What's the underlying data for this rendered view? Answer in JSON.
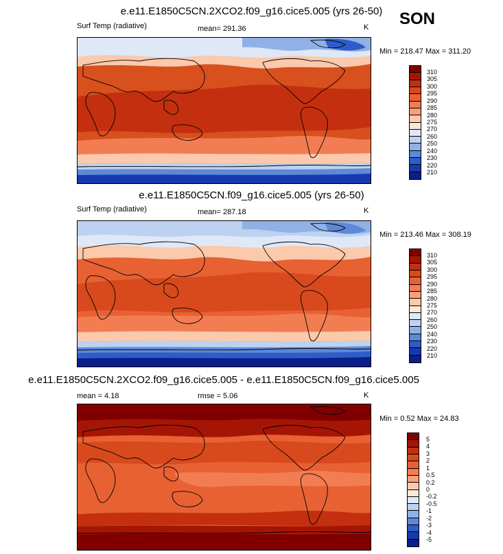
{
  "season": "SON",
  "panels": [
    {
      "title": "e.e11.E1850C5CN.2XCO2.f09_g16.cice5.005 (yrs 26-50)",
      "left_label": "Surf Temp (radiative)",
      "center_label": "mean= 291.36",
      "units": "K",
      "minmax": "Min = 218.47 Max = 311.20",
      "colorbar_labels": [
        "310",
        "305",
        "300",
        "295",
        "290",
        "285",
        "280",
        "275",
        "270",
        "260",
        "250",
        "240",
        "230",
        "220",
        "210"
      ],
      "colorbar_colors": [
        "#800000",
        "#a51505",
        "#c4300f",
        "#d84a1d",
        "#e86133",
        "#f27d52",
        "#f8a07a",
        "#fbc9ab",
        "#fde8d7",
        "#dfe8f7",
        "#bcd2f0",
        "#8fb1e6",
        "#5e88d8",
        "#2f5dc7",
        "#1838b0",
        "#0a1f8a"
      ]
    },
    {
      "title": "e.e11.E1850C5CN.f09_g16.cice5.005 (yrs 26-50)",
      "left_label": "Surf Temp (radiative)",
      "center_label": "mean= 287.18",
      "units": "K",
      "minmax": "Min = 213.46 Max = 308.19",
      "colorbar_labels": [
        "310",
        "305",
        "300",
        "295",
        "290",
        "285",
        "280",
        "275",
        "270",
        "260",
        "250",
        "240",
        "230",
        "220",
        "210"
      ],
      "colorbar_colors": [
        "#800000",
        "#a51505",
        "#c4300f",
        "#d84a1d",
        "#e86133",
        "#f27d52",
        "#f8a07a",
        "#fbc9ab",
        "#fde8d7",
        "#dfe8f7",
        "#bcd2f0",
        "#8fb1e6",
        "#5e88d8",
        "#2f5dc7",
        "#1838b0",
        "#0a1f8a"
      ]
    },
    {
      "title": "e.e11.E1850C5CN.2XCO2.f09_g16.cice5.005 - e.e11.E1850C5CN.f09_g16.cice5.005",
      "left_label": "mean =  4.18",
      "center_label": "rmse =  5.06",
      "units": "K",
      "minmax": "Min =  0.52 Max =  24.83",
      "colorbar_labels": [
        "5",
        "4",
        "3",
        "2",
        "1",
        "0.5",
        "0.2",
        "0",
        "-0.2",
        "-0.5",
        "-1",
        "-2",
        "-3",
        "-4",
        "-5"
      ],
      "colorbar_colors": [
        "#800000",
        "#a51505",
        "#c4300f",
        "#d84a1d",
        "#e86133",
        "#f27d52",
        "#f8a07a",
        "#fbc9ab",
        "#fde8d7",
        "#dfe8f7",
        "#bcd2f0",
        "#8fb1e6",
        "#5e88d8",
        "#2f5dc7",
        "#1838b0",
        "#0a1f8a"
      ]
    }
  ]
}
